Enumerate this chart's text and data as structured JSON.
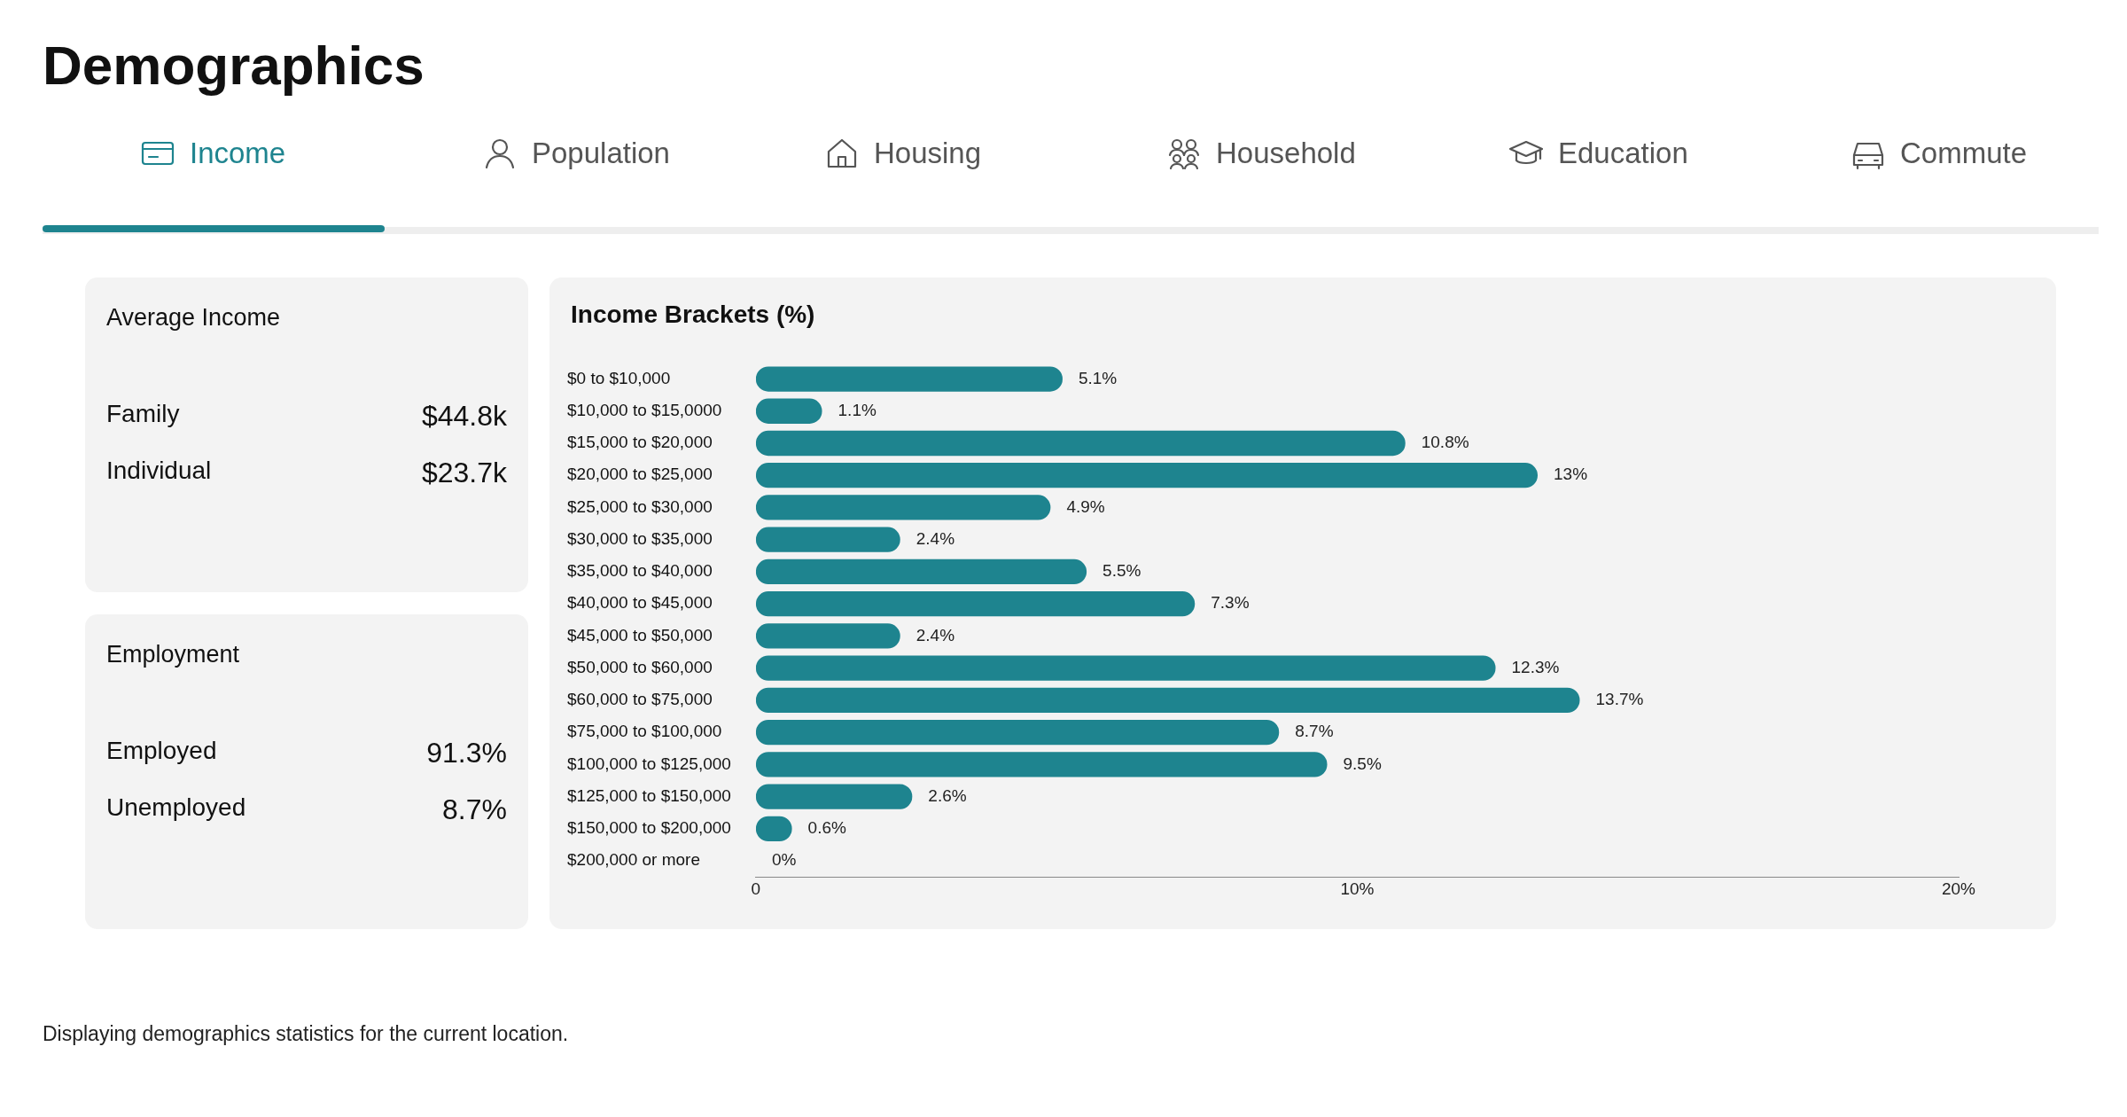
{
  "chart_data": [
    {
      "type": "other",
      "title": "Demographics",
      "annotations": [
        "Income",
        "Population",
        "Housing",
        "Household",
        "Education",
        "Commute"
      ]
    },
    {
      "type": "other",
      "title": "Average Income",
      "annotations": [
        "Family",
        "$44.8k",
        "Individual",
        "$23.7k"
      ]
    },
    {
      "type": "other",
      "title": "Employment",
      "annotations": [
        "Employed",
        "91.3%",
        "Unemployed",
        "8.7%"
      ]
    },
    {
      "type": "bar",
      "orientation": "horizontal",
      "title": "Income Brackets (%)",
      "categories": [
        "$0 to $10,000",
        "$10,000 to $15,0000",
        "$15,000 to $20,000",
        "$20,000 to $25,000",
        "$25,000 to $30,000",
        "$30,000 to $35,000",
        "$35,000 to $40,000",
        "$40,000 to $45,000",
        "$45,000 to $50,000",
        "$50,000 to $60,000",
        "$60,000 to $75,000",
        "$75,000 to $100,000",
        "$100,000 to $125,000",
        "$125,000 to $150,000",
        "$150,000 to $200,000",
        "$200,000 or more"
      ],
      "values": [
        5.1,
        1.1,
        10.8,
        13,
        4.9,
        2.4,
        5.5,
        7.3,
        2.4,
        12.3,
        13.7,
        8.7,
        9.5,
        2.6,
        0.6,
        0
      ],
      "value_labels": [
        "5.1%",
        "1.1%",
        "10.8%",
        "13%",
        "4.9%",
        "2.4%",
        "5.5%",
        "7.3%",
        "2.4%",
        "12.3%",
        "13.7%",
        "8.7%",
        "9.5%",
        "2.6%",
        "0.6%",
        "0%"
      ],
      "color": "#1e848f",
      "xlim": [
        0,
        20
      ],
      "xticks": [
        0,
        {
          "value": 10,
          "label": "10%"
        },
        {
          "value": 20,
          "label": "20%"
        }
      ],
      "grid": false,
      "legend": false,
      "annotations": [
        "Displaying demographics statistics for the current location."
      ]
    }
  ]
}
